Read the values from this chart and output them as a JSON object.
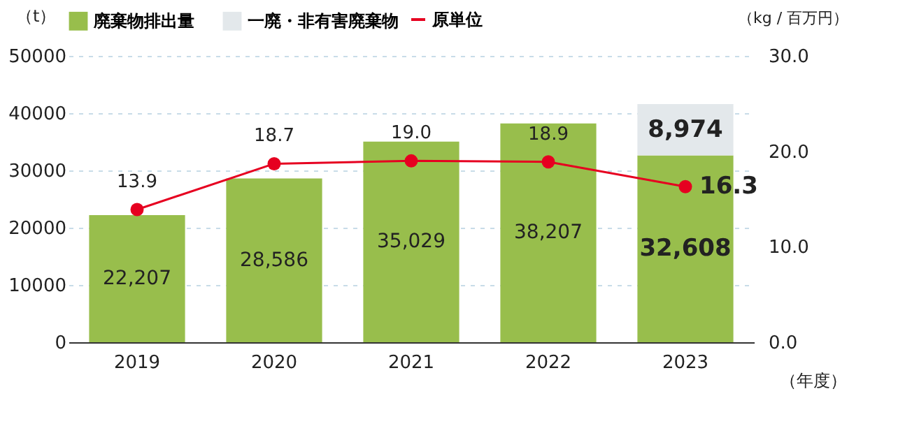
{
  "chart_data": {
    "type": "bar",
    "stacked": true,
    "categories": [
      "2019",
      "2020",
      "2021",
      "2022",
      "2023"
    ],
    "series": [
      {
        "name": "廃棄物排出量",
        "color": "#98be4c",
        "values": [
          22207,
          28586,
          35029,
          38207,
          32608
        ],
        "value_labels": [
          "22,207",
          "28,586",
          "35,029",
          "38,207",
          "32,608"
        ]
      },
      {
        "name": "一廃・非有害廃棄物",
        "color": "#e3e8eb",
        "values": [
          null,
          null,
          null,
          null,
          8974
        ],
        "value_labels": [
          null,
          null,
          null,
          null,
          "8,974"
        ]
      },
      {
        "name": "原単位",
        "type": "line",
        "axis": "y2",
        "color": "#e60020",
        "marker": "circle",
        "line_style": "solid",
        "values": [
          13.9,
          18.7,
          19.0,
          18.9,
          16.3
        ],
        "value_labels": [
          "13.9",
          "18.7",
          "19.0",
          "18.9",
          "16.3"
        ]
      }
    ],
    "ylim": [
      0,
      50000
    ],
    "yticks": [
      0,
      10000,
      20000,
      30000,
      40000,
      50000
    ],
    "y2lim": [
      0,
      30
    ],
    "y2ticks": [
      {
        "value": 0,
        "label": "0.0"
      },
      {
        "value": 10,
        "label": "10.0"
      },
      {
        "value": 20,
        "label": "20.0"
      },
      {
        "value": 30,
        "label": "30.0"
      }
    ],
    "ylabel": "（t）",
    "y2label": "（kg / 百万円）",
    "xlabel": "（年度）",
    "grid": "y",
    "legend": "top"
  }
}
